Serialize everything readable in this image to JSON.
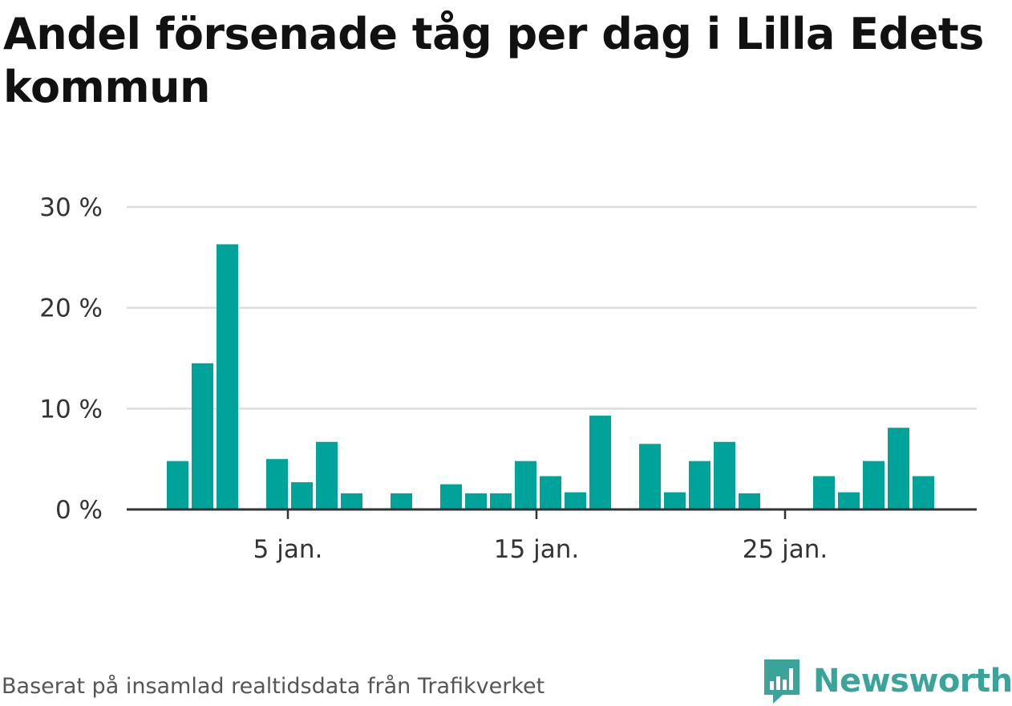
{
  "title": "Andel försenade tåg per dag i Lilla Edets kommun",
  "footer": {
    "source": "Baserat på insamlad realtidsdata från Trafikverket",
    "brand": "Newsworthy"
  },
  "colors": {
    "bar": "#00a39a",
    "brand": "#3aa39a",
    "grid": "#dddddd",
    "axis": "#333333"
  },
  "chart_data": {
    "type": "bar",
    "title": "Andel försenade tåg per dag i Lilla Edets kommun",
    "xlabel": "",
    "ylabel": "",
    "x": [
      1,
      2,
      3,
      4,
      5,
      6,
      7,
      8,
      9,
      10,
      11,
      12,
      13,
      14,
      15,
      16,
      17,
      18,
      19,
      20,
      21,
      22,
      23,
      24,
      25,
      26,
      27,
      28,
      29,
      30,
      31
    ],
    "values": [
      4.8,
      14.5,
      26.3,
      0,
      5.0,
      2.7,
      6.7,
      1.6,
      0,
      1.6,
      0,
      2.5,
      1.6,
      1.6,
      4.8,
      3.3,
      1.7,
      9.3,
      0,
      6.5,
      1.7,
      4.8,
      6.7,
      1.6,
      0,
      0,
      3.3,
      1.7,
      4.8,
      8.1,
      3.3
    ],
    "ylim": [
      0,
      30
    ],
    "yticks": [
      0,
      10,
      20,
      30
    ],
    "yticklabels": [
      "0 %",
      "10 %",
      "20 %",
      "30 %"
    ],
    "xticks": [
      5,
      15,
      25
    ],
    "xticklabels": [
      "5 jan.",
      "15 jan.",
      "25 jan."
    ],
    "grid": true,
    "legend": "none"
  }
}
